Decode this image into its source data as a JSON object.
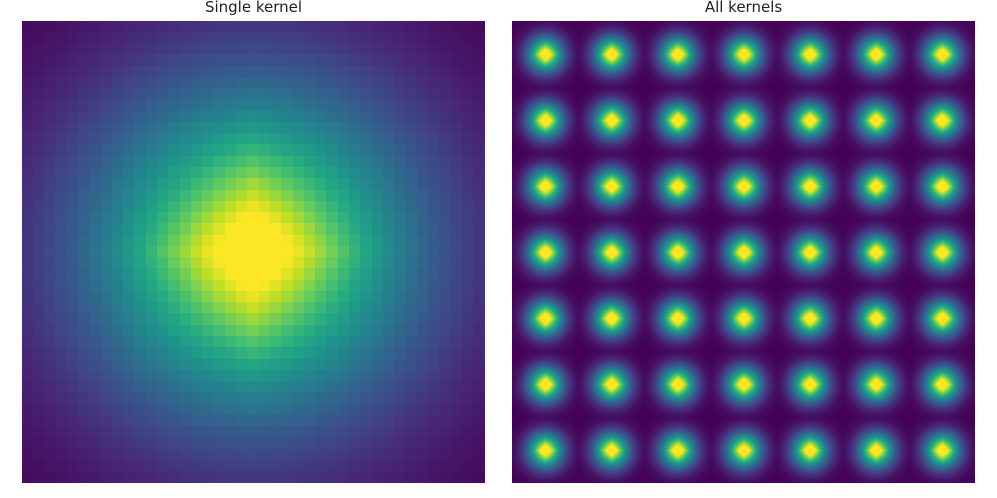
{
  "chart_data": [
    {
      "type": "heatmap",
      "title": "Single kernel",
      "colormap": "viridis",
      "grid": false,
      "axes_visible": false,
      "kernel_size": 41,
      "peak": "center",
      "value_range": [
        0,
        1
      ]
    },
    {
      "type": "heatmap",
      "title": "All kernels",
      "colormap": "viridis",
      "grid": false,
      "axes_visible": false,
      "tiles_rows": 7,
      "tiles_cols": 7,
      "kernel_size": 41,
      "value_range": [
        0,
        1
      ]
    }
  ]
}
